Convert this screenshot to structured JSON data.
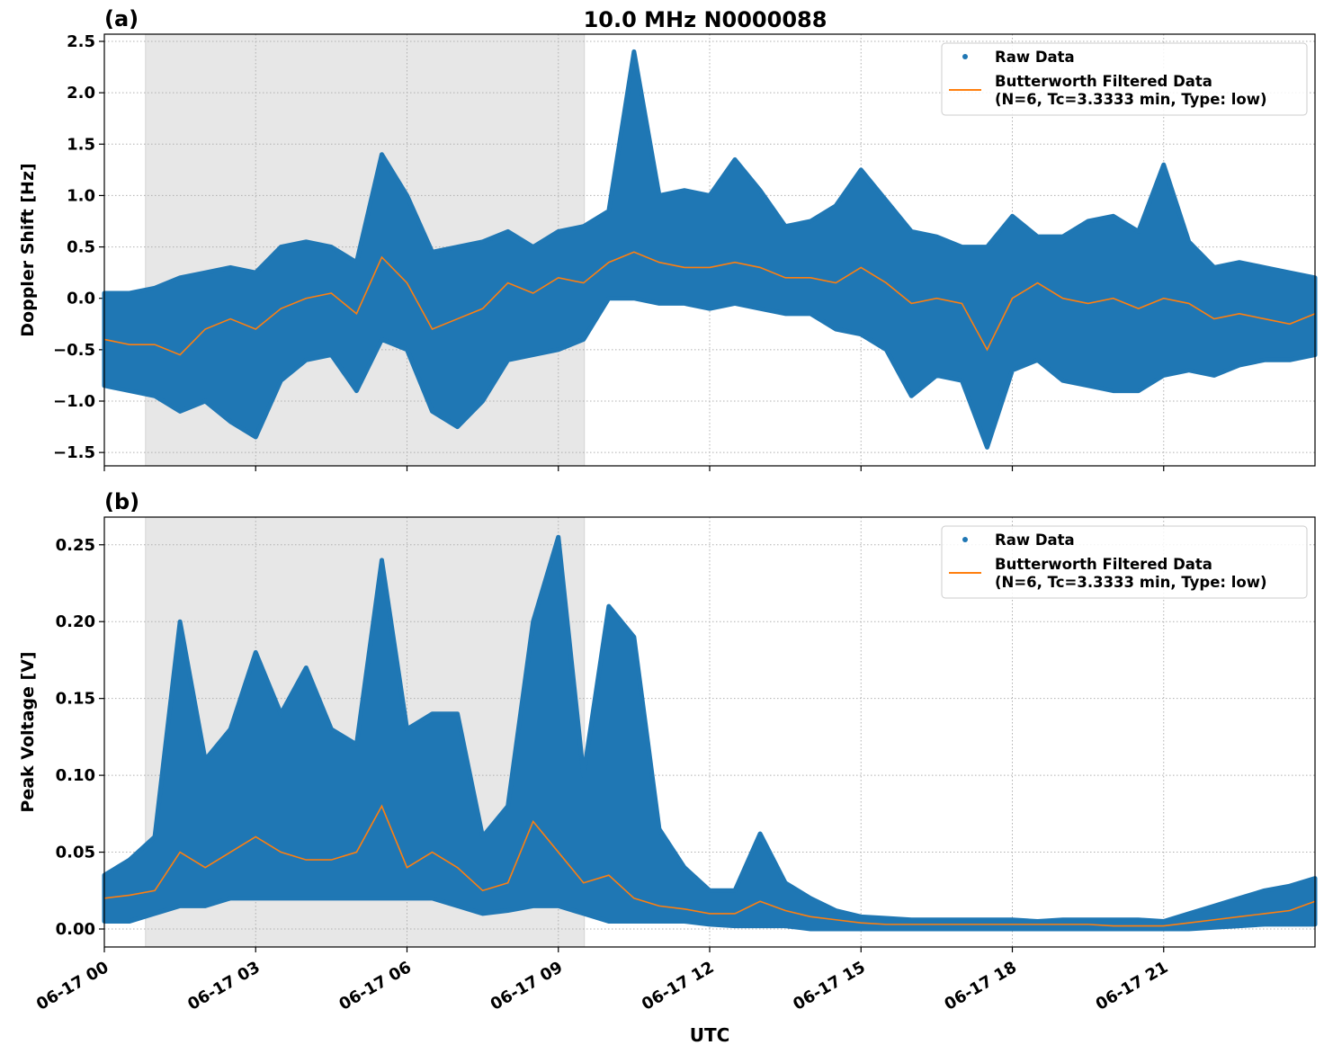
{
  "chart_data": {
    "type": "scatter",
    "title": "10.0 MHz N0000088",
    "xlabel": "UTC",
    "x_tick_labels": [
      "06-17 00",
      "06-17 03",
      "06-17 06",
      "06-17 09",
      "06-17 12",
      "06-17 15",
      "06-17 18",
      "06-17 21"
    ],
    "xlim": [
      "06-17 00:00",
      "06-18 00:00"
    ],
    "shaded_span": [
      "06-17 00:49",
      "06-17 09:31"
    ],
    "grid": true,
    "legend_placement": "top-right",
    "colors": {
      "raw": "#1f77b4",
      "filtered": "#ff7f0e",
      "shade": "#e7e7e7"
    },
    "legend": [
      "Raw Data",
      "Butterworth Filtered Data",
      "(N=6, Tc=3.3333 min, Type: low)"
    ],
    "x": [
      "00:00",
      "00:30",
      "01:00",
      "01:30",
      "02:00",
      "02:30",
      "03:00",
      "03:30",
      "04:00",
      "04:30",
      "05:00",
      "05:30",
      "06:00",
      "06:30",
      "07:00",
      "07:30",
      "08:00",
      "08:30",
      "09:00",
      "09:30",
      "10:00",
      "10:30",
      "11:00",
      "11:30",
      "12:00",
      "12:30",
      "13:00",
      "13:30",
      "14:00",
      "14:30",
      "15:00",
      "15:30",
      "16:00",
      "16:30",
      "17:00",
      "17:30",
      "18:00",
      "18:30",
      "19:00",
      "19:30",
      "20:00",
      "20:30",
      "21:00",
      "21:30",
      "22:00",
      "22:30",
      "23:00",
      "23:30",
      "24:00"
    ],
    "panels": [
      {
        "label": "(a)",
        "ylabel": "Doppler Shift [Hz]",
        "ylim": [
          -1.63,
          2.57
        ],
        "y_ticks": [
          -1.5,
          -1.0,
          -0.5,
          0.0,
          0.5,
          1.0,
          1.5,
          2.0,
          2.5
        ],
        "y_tick_labels": [
          "−1.5",
          "−1.0",
          "−0.5",
          "0.0",
          "0.5",
          "1.0",
          "1.5",
          "2.0",
          "2.5"
        ],
        "filtered": [
          -0.4,
          -0.45,
          -0.45,
          -0.55,
          -0.3,
          -0.2,
          -0.3,
          -0.1,
          0.0,
          0.05,
          -0.15,
          0.4,
          0.15,
          -0.3,
          -0.2,
          -0.1,
          0.15,
          0.05,
          0.2,
          0.15,
          0.35,
          0.45,
          0.35,
          0.3,
          0.3,
          0.35,
          0.3,
          0.2,
          0.2,
          0.15,
          0.3,
          0.15,
          -0.05,
          0.0,
          -0.05,
          -0.5,
          0.0,
          0.15,
          0.0,
          -0.05,
          0.0,
          -0.1,
          0.0,
          -0.05,
          -0.2,
          -0.15,
          -0.2,
          -0.25,
          -0.15
        ],
        "raw_max": [
          0.05,
          0.05,
          0.1,
          0.2,
          0.25,
          0.3,
          0.25,
          0.5,
          0.55,
          0.5,
          0.35,
          1.4,
          1.0,
          0.45,
          0.5,
          0.55,
          0.65,
          0.5,
          0.65,
          0.7,
          0.85,
          2.4,
          1.0,
          1.05,
          1.0,
          1.35,
          1.05,
          0.7,
          0.75,
          0.9,
          1.25,
          0.95,
          0.65,
          0.6,
          0.5,
          0.5,
          0.8,
          0.6,
          0.6,
          0.75,
          0.8,
          0.65,
          1.3,
          0.55,
          0.3,
          0.35,
          0.3,
          0.25,
          0.2
        ],
        "raw_min": [
          -0.85,
          -0.9,
          -0.95,
          -1.1,
          -1.0,
          -1.2,
          -1.35,
          -0.8,
          -0.6,
          -0.55,
          -0.9,
          -0.4,
          -0.5,
          -1.1,
          -1.25,
          -1.0,
          -0.6,
          -0.55,
          -0.5,
          -0.4,
          0.0,
          0.0,
          -0.05,
          -0.05,
          -0.1,
          -0.05,
          -0.1,
          -0.15,
          -0.15,
          -0.3,
          -0.35,
          -0.5,
          -0.95,
          -0.75,
          -0.8,
          -1.45,
          -0.7,
          -0.6,
          -0.8,
          -0.85,
          -0.9,
          -0.9,
          -0.75,
          -0.7,
          -0.75,
          -0.65,
          -0.6,
          -0.6,
          -0.55
        ]
      },
      {
        "label": "(b)",
        "ylabel": "Peak Voltage [V]",
        "ylim": [
          -0.0117,
          0.268
        ],
        "y_ticks": [
          0.0,
          0.05,
          0.1,
          0.15,
          0.2,
          0.25
        ],
        "y_tick_labels": [
          "0.00",
          "0.05",
          "0.10",
          "0.15",
          "0.20",
          "0.25"
        ],
        "filtered": [
          0.02,
          0.022,
          0.025,
          0.05,
          0.04,
          0.05,
          0.06,
          0.05,
          0.045,
          0.045,
          0.05,
          0.08,
          0.04,
          0.05,
          0.04,
          0.025,
          0.03,
          0.07,
          0.05,
          0.03,
          0.035,
          0.02,
          0.015,
          0.013,
          0.01,
          0.01,
          0.018,
          0.012,
          0.008,
          0.006,
          0.004,
          0.003,
          0.003,
          0.003,
          0.003,
          0.003,
          0.003,
          0.003,
          0.003,
          0.003,
          0.002,
          0.002,
          0.002,
          0.004,
          0.006,
          0.008,
          0.01,
          0.012,
          0.018
        ],
        "raw_max": [
          0.035,
          0.045,
          0.06,
          0.2,
          0.11,
          0.13,
          0.18,
          0.14,
          0.17,
          0.13,
          0.12,
          0.24,
          0.13,
          0.14,
          0.14,
          0.06,
          0.08,
          0.2,
          0.255,
          0.1,
          0.21,
          0.19,
          0.065,
          0.04,
          0.025,
          0.025,
          0.062,
          0.03,
          0.02,
          0.012,
          0.008,
          0.007,
          0.006,
          0.006,
          0.006,
          0.006,
          0.006,
          0.005,
          0.006,
          0.006,
          0.006,
          0.006,
          0.005,
          0.01,
          0.015,
          0.02,
          0.025,
          0.028,
          0.033
        ],
        "raw_min": [
          0.005,
          0.005,
          0.01,
          0.015,
          0.015,
          0.02,
          0.02,
          0.02,
          0.02,
          0.02,
          0.02,
          0.02,
          0.02,
          0.02,
          0.015,
          0.01,
          0.012,
          0.015,
          0.015,
          0.01,
          0.005,
          0.005,
          0.005,
          0.005,
          0.003,
          0.002,
          0.002,
          0.002,
          0.0,
          0.0,
          0.0,
          0.0,
          0.0,
          0.0,
          0.0,
          0.0,
          0.0,
          0.0,
          0.0,
          0.0,
          0.0,
          0.0,
          0.0,
          0.0,
          0.001,
          0.002,
          0.003,
          0.003,
          0.003
        ]
      }
    ]
  }
}
